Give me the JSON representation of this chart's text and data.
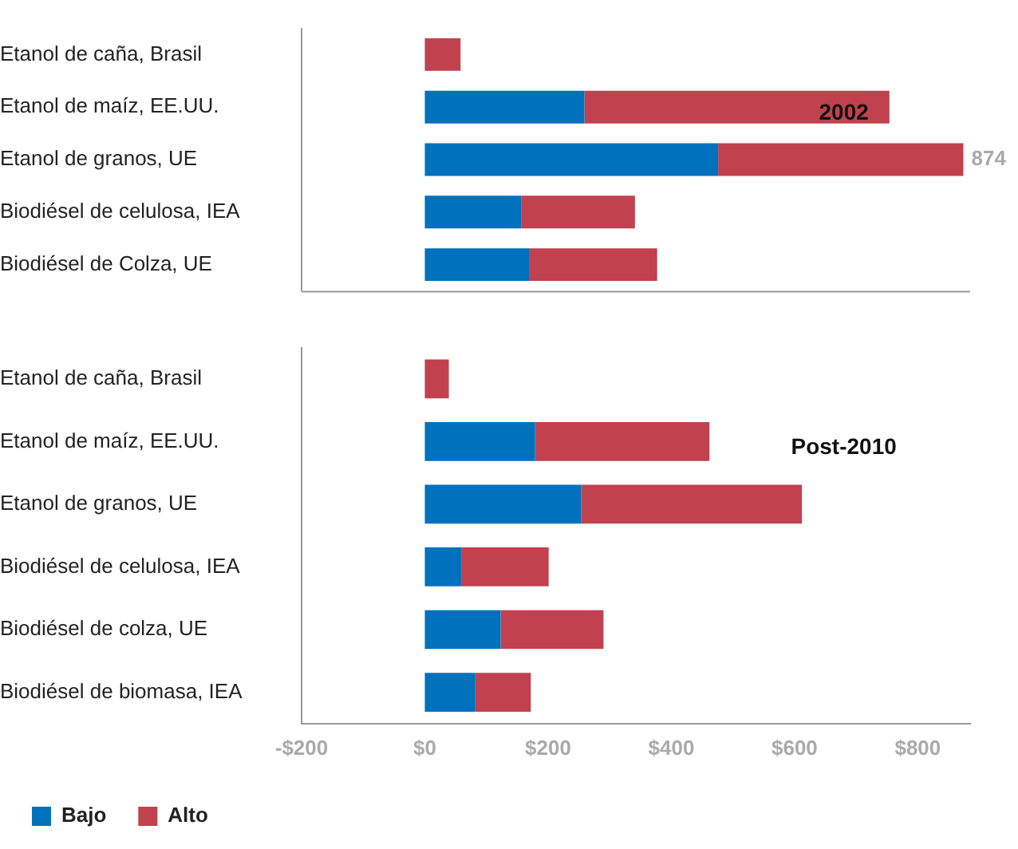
{
  "chart_data": [
    {
      "type": "bar",
      "orientation": "horizontal",
      "stacked": true,
      "categories": [
        "Etanol de caña, Brasil",
        "Etanol de maíz, EE.UU.",
        "Etanol de granos, UE",
        "Biodiésel de celulosa, IEA",
        "Biodiésel de Colza, UE"
      ],
      "series": [
        {
          "color": "#0071bc",
          "values": [
            0,
            259,
            476,
            157,
            169
          ]
        },
        {
          "color": "#c1414f",
          "values": [
            58,
            495,
            398,
            184,
            208
          ]
        }
      ],
      "totals": [
        null,
        null,
        "874",
        null,
        null
      ],
      "xlim": [
        -200,
        885
      ],
      "tick_labels": "y",
      "legend": false,
      "annotations": [
        "2002"
      ]
    },
    {
      "type": "bar",
      "orientation": "horizontal",
      "stacked": true,
      "categories": [
        "Etanol de caña, Brasil",
        "Etanol de maíz, EE.UU.",
        "Etanol de granos, UE",
        "Biodiésel de celulosa, IEA",
        "Biodiésel de colza, UE",
        "Biodiésel de biomasa, IEA"
      ],
      "series": [
        {
          "name": "Bajo",
          "color": "#0071bc",
          "values": [
            0,
            179,
            254,
            60,
            123,
            82
          ]
        },
        {
          "name": "Alto",
          "color": "#c1414f",
          "values": [
            39,
            283,
            358,
            141,
            167,
            90
          ]
        }
      ],
      "xlim": [
        -200,
        885
      ],
      "xticks": [
        {
          "value": -200,
          "label": "-$200"
        },
        {
          "value": 0,
          "label": "$0"
        },
        {
          "value": 200,
          "label": "$200"
        },
        {
          "value": 400,
          "label": "$400"
        },
        {
          "value": 600,
          "label": "$600"
        },
        {
          "value": 800,
          "label": "$800"
        }
      ],
      "legend": "bottom",
      "annotations": [
        "Post-2010"
      ]
    }
  ]
}
